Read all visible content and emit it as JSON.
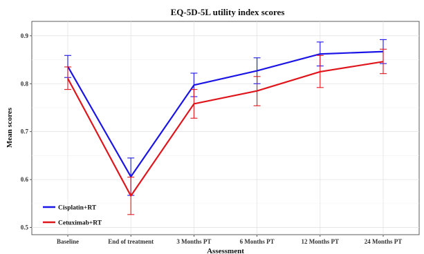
{
  "chart_data": {
    "type": "line",
    "title": "EQ-5D-5L utility index scores",
    "xlabel": "Assessment",
    "ylabel": "Mean  scores",
    "categories": [
      "Baseline",
      "End of treatment",
      "3 Months PT",
      "6 Months PT",
      "12 Months PT",
      "24 Months PT"
    ],
    "ylim": [
      0.485,
      0.93
    ],
    "yticks": [
      0.5,
      0.6,
      0.7,
      0.8,
      0.9
    ],
    "ytick_labels": [
      "0.5",
      "0.6",
      "0.7",
      "0.8",
      "0.9"
    ],
    "grid": true,
    "legend_position": "bottom-left",
    "series": [
      {
        "name": "Cisplatin+RT",
        "color": "#1a14e6",
        "values": [
          0.836,
          0.606,
          0.797,
          0.827,
          0.862,
          0.867
        ],
        "error_low": [
          0.813,
          0.567,
          0.773,
          0.8,
          0.837,
          0.842
        ],
        "error_high": [
          0.859,
          0.645,
          0.822,
          0.854,
          0.887,
          0.892
        ]
      },
      {
        "name": "Cetuximab+RT",
        "color": "#e0151b",
        "values": [
          0.811,
          0.566,
          0.758,
          0.785,
          0.825,
          0.846
        ],
        "error_low": [
          0.788,
          0.527,
          0.728,
          0.754,
          0.792,
          0.821
        ],
        "error_high": [
          0.835,
          0.605,
          0.788,
          0.815,
          0.859,
          0.872
        ]
      }
    ]
  }
}
